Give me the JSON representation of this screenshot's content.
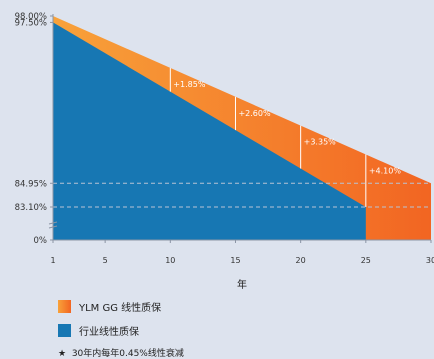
{
  "chart_data": {
    "type": "area",
    "title": "",
    "xlabel": "年",
    "ylabel": "",
    "x_ticks": [
      1,
      5,
      10,
      15,
      20,
      25,
      30
    ],
    "y_tick_labels": [
      "98.00%",
      "97.50%",
      "84.95%",
      "83.10%",
      "0%"
    ],
    "y_tick_values": [
      98.0,
      97.5,
      84.95,
      83.1,
      0
    ],
    "y_axis_broken": true,
    "series": [
      {
        "name": "YLM GG 线性质保",
        "color": "#f47a20",
        "x": [
          1,
          30
        ],
        "y": [
          98.0,
          84.95
        ]
      },
      {
        "name": "行业线性质保",
        "color": "#1777b3",
        "x": [
          1,
          25
        ],
        "y": [
          97.5,
          83.1
        ]
      }
    ],
    "annotations": [
      {
        "x": 10,
        "label": "+1.85%"
      },
      {
        "x": 15,
        "label": "+2.60%"
      },
      {
        "x": 20,
        "label": "+3.35%"
      },
      {
        "x": 25,
        "label": "+4.10%"
      }
    ],
    "reference_lines": [
      84.95,
      83.1
    ],
    "legend_position": "bottom"
  },
  "legend": {
    "items": [
      {
        "label": "YLM GG 线性质保",
        "color": "#f47a20"
      },
      {
        "label": "行业线性质保",
        "color": "#1777b3"
      }
    ],
    "note_symbol": "★",
    "note": "30年内每年0.45%线性衰减"
  }
}
